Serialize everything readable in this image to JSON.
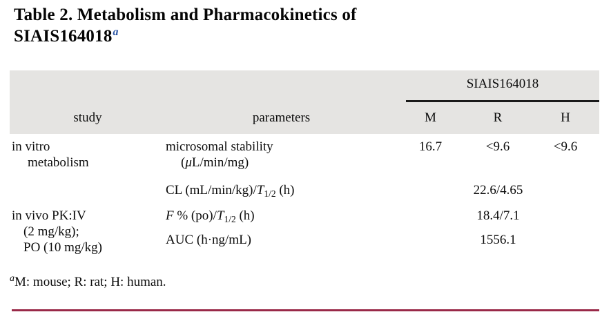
{
  "colors": {
    "header_band": "#e5e4e2",
    "spanner_rule": "#1a1a1a",
    "bottom_rule": "#992948",
    "title_superscript_blue": "#2b55a5",
    "text": "#0c0c0c"
  },
  "title": {
    "line1": "Table 2. Metabolism and Pharmacokinetics of",
    "line2": "SIAIS164018",
    "superscript": "a"
  },
  "table": {
    "compound": "SIAIS164018",
    "headers": {
      "study": "study",
      "parameters": "parameters",
      "m": "M",
      "r": "R",
      "h": "H"
    },
    "rows": {
      "microsomal": {
        "study_line1": "in vitro",
        "study_line2": "metabolism",
        "param_line1": "microsomal stability",
        "param_line2_open": "(",
        "param_line2_mu": "μ",
        "param_line2_rest": "L/min/mg)",
        "value_m": "16.7",
        "value_r": "<9.6",
        "value_h": "<9.6"
      },
      "clearance": {
        "param_prefix": "CL (mL/min/kg)/",
        "param_t": "T",
        "param_t_sub": "1/2",
        "param_suffix": " (h)",
        "value": "22.6/4.65"
      },
      "bioavailability": {
        "study_line1": "in vivo PK:IV",
        "study_line2": "(2 mg/kg);",
        "study_line3": "PO (10 mg/kg)",
        "param_f": "F",
        "param_mid": " % (po)/",
        "param_t": "T",
        "param_t_sub": "1/2",
        "param_suffix": " (h)",
        "value": "18.4/7.1"
      },
      "auc": {
        "param": "AUC (h·ng/mL)",
        "value": "1556.1"
      }
    }
  },
  "footnote": {
    "marker": "a",
    "text": "M: mouse; R: rat; H: human."
  }
}
